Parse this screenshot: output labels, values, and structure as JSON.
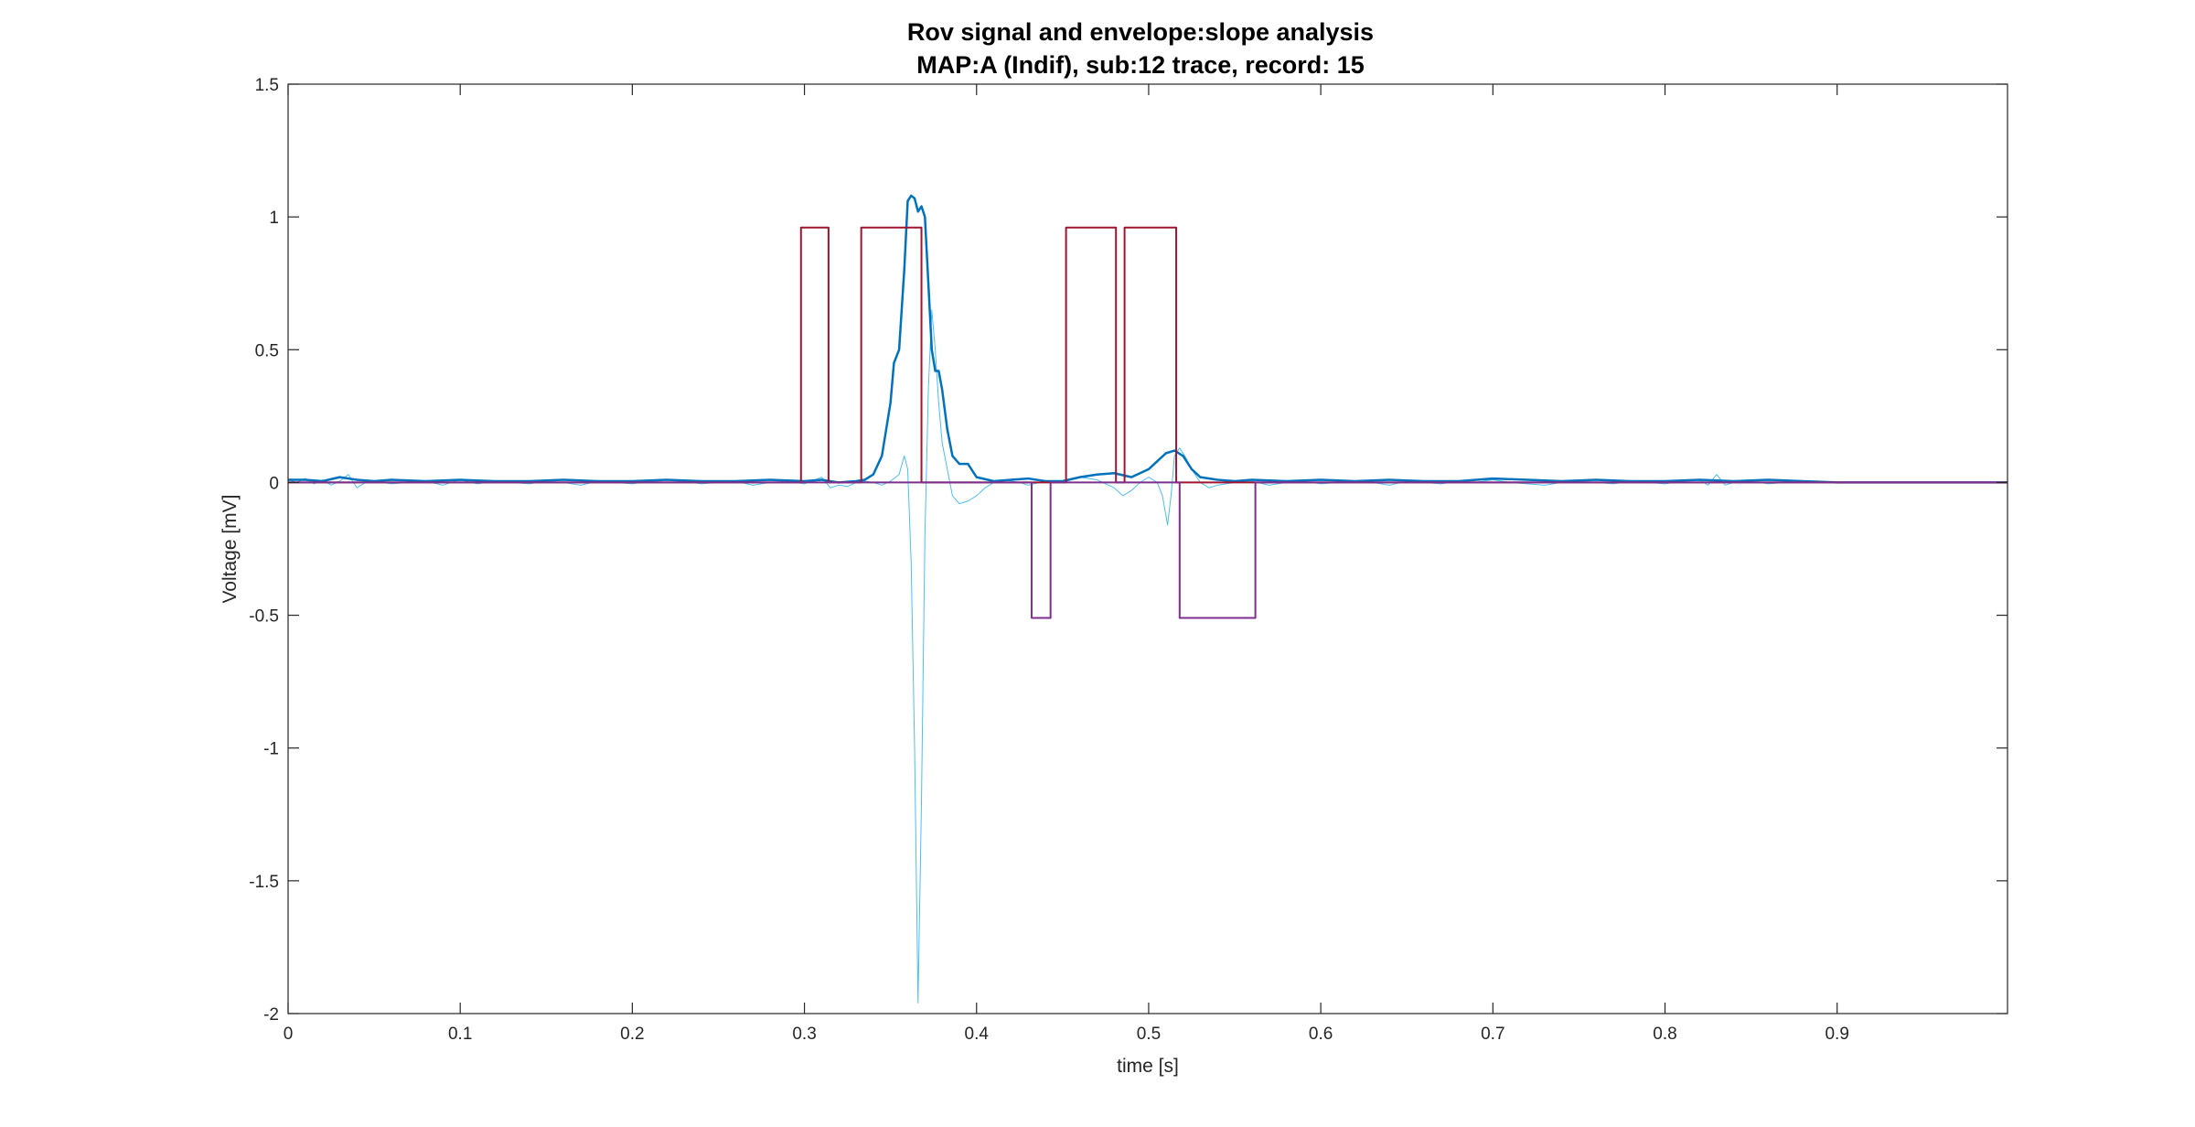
{
  "chart_data": {
    "type": "line",
    "title": "Rov signal and envelope:slope analysis",
    "subtitle": "MAP:A (Indif), sub:12 trace, record: 15",
    "xlabel": "time [s]",
    "ylabel": "Voltage [mV]",
    "xlim": [
      0,
      0.999
    ],
    "ylim": [
      -2,
      1.5
    ],
    "xticks": [
      0,
      0.1,
      0.2,
      0.3,
      0.4,
      0.5,
      0.6,
      0.7,
      0.8,
      0.9
    ],
    "xtick_labels": [
      "0",
      "0.1",
      "0.2",
      "0.3",
      "0.4",
      "0.5",
      "0.6",
      "0.7",
      "0.8",
      "0.9"
    ],
    "yticks": [
      -2,
      -1.5,
      -1,
      -0.5,
      0,
      0.5,
      1,
      1.5
    ],
    "ytick_labels": [
      "-2",
      "-1.5",
      "-1",
      "-0.5",
      "0",
      "0.5",
      "1",
      "1.5"
    ],
    "grid": false,
    "box": true,
    "series": [
      {
        "color": "#4DBEEE",
        "line_width": 1,
        "x": [
          0,
          0.005,
          0.01,
          0.015,
          0.02,
          0.025,
          0.03,
          0.035,
          0.04,
          0.045,
          0.05,
          0.06,
          0.07,
          0.08,
          0.09,
          0.1,
          0.11,
          0.12,
          0.13,
          0.14,
          0.15,
          0.16,
          0.17,
          0.18,
          0.19,
          0.2,
          0.21,
          0.22,
          0.23,
          0.24,
          0.25,
          0.26,
          0.27,
          0.28,
          0.29,
          0.3,
          0.31,
          0.315,
          0.32,
          0.325,
          0.33,
          0.335,
          0.34,
          0.345,
          0.35,
          0.355,
          0.358,
          0.36,
          0.362,
          0.364,
          0.366,
          0.368,
          0.37,
          0.372,
          0.374,
          0.376,
          0.378,
          0.38,
          0.383,
          0.386,
          0.39,
          0.395,
          0.4,
          0.405,
          0.41,
          0.415,
          0.42,
          0.425,
          0.43,
          0.44,
          0.45,
          0.46,
          0.47,
          0.48,
          0.485,
          0.49,
          0.495,
          0.5,
          0.505,
          0.508,
          0.511,
          0.513,
          0.515,
          0.518,
          0.521,
          0.525,
          0.53,
          0.535,
          0.54,
          0.55,
          0.56,
          0.57,
          0.58,
          0.59,
          0.6,
          0.61,
          0.62,
          0.63,
          0.64,
          0.65,
          0.66,
          0.67,
          0.68,
          0.69,
          0.7,
          0.71,
          0.72,
          0.73,
          0.74,
          0.75,
          0.76,
          0.77,
          0.78,
          0.79,
          0.8,
          0.81,
          0.82,
          0.825,
          0.83,
          0.835,
          0.84,
          0.85,
          0.86,
          0.87,
          0.88,
          0.89,
          0.9,
          0.95,
          0.999
        ],
        "y": [
          0.01,
          0.0,
          0.015,
          -0.005,
          0.01,
          -0.01,
          0.005,
          0.03,
          -0.02,
          0.0,
          0.005,
          -0.005,
          0.0,
          0.005,
          -0.01,
          0.01,
          -0.005,
          0.005,
          0.0,
          -0.005,
          0.005,
          0.0,
          -0.01,
          0.005,
          0.0,
          -0.005,
          0.005,
          0.0,
          0.005,
          -0.005,
          0.0,
          0.005,
          -0.01,
          0.0,
          0.005,
          -0.005,
          0.02,
          -0.02,
          -0.01,
          -0.015,
          0.0,
          0.005,
          0.0,
          -0.01,
          0.005,
          0.03,
          0.1,
          0.05,
          -0.3,
          -1.0,
          -1.96,
          -1.2,
          -0.2,
          0.35,
          0.65,
          0.5,
          0.3,
          0.15,
          0.05,
          -0.05,
          -0.08,
          -0.07,
          -0.05,
          -0.02,
          0.0,
          0.01,
          0.005,
          0.0,
          -0.01,
          0.005,
          0.0,
          0.02,
          0.01,
          -0.02,
          -0.05,
          -0.03,
          0.0,
          0.02,
          0.0,
          -0.05,
          -0.16,
          -0.05,
          0.1,
          0.13,
          0.1,
          0.05,
          0.0,
          -0.02,
          -0.01,
          0.0,
          0.005,
          -0.01,
          0.0,
          0.005,
          -0.005,
          0.0,
          0.005,
          0.0,
          -0.01,
          0.005,
          0.0,
          -0.005,
          0.005,
          0.0,
          0.01,
          0.0,
          -0.005,
          -0.01,
          0.0,
          0.005,
          0.0,
          -0.005,
          0.005,
          0.0,
          -0.005,
          0.005,
          0.01,
          -0.01,
          0.03,
          -0.01,
          0.0,
          0.005,
          -0.005,
          0.0,
          0.005,
          0.0,
          0.0,
          0.0,
          0.0
        ]
      },
      {
        "color": "#0072BD",
        "line_width": 2.5,
        "x": [
          0,
          0.01,
          0.02,
          0.03,
          0.04,
          0.05,
          0.06,
          0.08,
          0.1,
          0.12,
          0.14,
          0.16,
          0.18,
          0.2,
          0.22,
          0.24,
          0.26,
          0.28,
          0.3,
          0.31,
          0.32,
          0.33,
          0.335,
          0.34,
          0.345,
          0.35,
          0.352,
          0.355,
          0.358,
          0.36,
          0.362,
          0.364,
          0.366,
          0.368,
          0.37,
          0.372,
          0.374,
          0.376,
          0.378,
          0.38,
          0.383,
          0.386,
          0.39,
          0.395,
          0.4,
          0.41,
          0.42,
          0.43,
          0.44,
          0.45,
          0.46,
          0.47,
          0.48,
          0.49,
          0.5,
          0.505,
          0.51,
          0.515,
          0.52,
          0.525,
          0.53,
          0.54,
          0.55,
          0.56,
          0.58,
          0.6,
          0.62,
          0.64,
          0.66,
          0.68,
          0.7,
          0.72,
          0.74,
          0.76,
          0.78,
          0.8,
          0.82,
          0.84,
          0.86,
          0.88,
          0.9,
          0.95,
          0.999
        ],
        "y": [
          0.01,
          0.01,
          0.005,
          0.02,
          0.01,
          0.005,
          0.01,
          0.005,
          0.01,
          0.005,
          0.005,
          0.01,
          0.005,
          0.005,
          0.01,
          0.005,
          0.005,
          0.01,
          0.005,
          0.01,
          0.0,
          0.005,
          0.01,
          0.03,
          0.1,
          0.3,
          0.45,
          0.5,
          0.8,
          1.06,
          1.08,
          1.07,
          1.02,
          1.04,
          1.0,
          0.75,
          0.5,
          0.42,
          0.42,
          0.35,
          0.2,
          0.1,
          0.07,
          0.07,
          0.02,
          0.005,
          0.01,
          0.015,
          0.005,
          0.005,
          0.02,
          0.03,
          0.035,
          0.02,
          0.05,
          0.08,
          0.11,
          0.12,
          0.1,
          0.05,
          0.02,
          0.01,
          0.005,
          0.01,
          0.005,
          0.01,
          0.005,
          0.01,
          0.005,
          0.005,
          0.015,
          0.01,
          0.005,
          0.01,
          0.005,
          0.005,
          0.01,
          0.005,
          0.01,
          0.005,
          0.0,
          0.0,
          0.0
        ]
      },
      {
        "color": "#A2142F",
        "line_width": 2,
        "x": [
          0,
          0.298,
          0.298,
          0.314,
          0.314,
          0.333,
          0.333,
          0.368,
          0.368,
          0.452,
          0.452,
          0.481,
          0.481,
          0.486,
          0.486,
          0.516,
          0.516,
          0.999
        ],
        "y": [
          0,
          0,
          0.96,
          0.96,
          0,
          0,
          0.96,
          0.96,
          0,
          0,
          0.96,
          0.96,
          0,
          0,
          0.96,
          0.96,
          0,
          0
        ]
      },
      {
        "color": "#7E2F8E",
        "line_width": 2,
        "x": [
          0,
          0.432,
          0.432,
          0.443,
          0.443,
          0.518,
          0.518,
          0.562,
          0.562,
          0.999
        ],
        "y": [
          0,
          0,
          -0.51,
          -0.51,
          0,
          0,
          -0.51,
          -0.51,
          0,
          0
        ]
      }
    ]
  }
}
